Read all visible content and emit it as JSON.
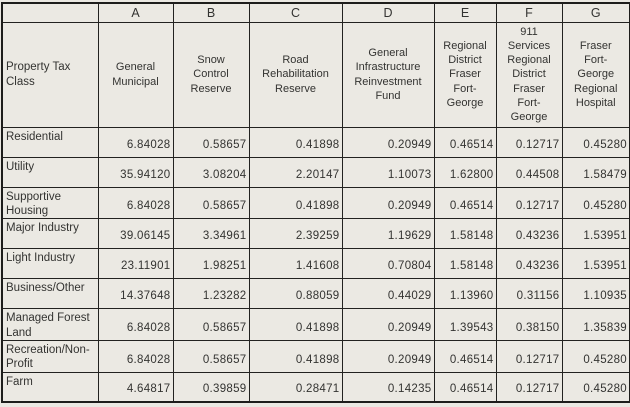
{
  "table": {
    "corner_label": "Property Tax Class",
    "column_letters": [
      "A",
      "B",
      "C",
      "D",
      "E",
      "F",
      "G"
    ],
    "columns": [
      "General Municipal",
      "Snow Control Reserve",
      "Road Rehabilitation Reserve",
      "General Infrastructure Reinvestment Fund",
      "Regional District Fraser Fort-George",
      "911 Services Regional District Fraser Fort-George",
      "Fraser Fort-George Regional Hospital"
    ],
    "rows": [
      {
        "label": "Residential",
        "values": [
          "6.84028",
          "0.58657",
          "0.41898",
          "0.20949",
          "0.46514",
          "0.12717",
          "0.45280"
        ]
      },
      {
        "label": "Utility",
        "values": [
          "35.94120",
          "3.08204",
          "2.20147",
          "1.10073",
          "1.62800",
          "0.44508",
          "1.58479"
        ]
      },
      {
        "label": "Supportive Housing",
        "values": [
          "6.84028",
          "0.58657",
          "0.41898",
          "0.20949",
          "0.46514",
          "0.12717",
          "0.45280"
        ]
      },
      {
        "label": "Major Industry",
        "values": [
          "39.06145",
          "3.34961",
          "2.39259",
          "1.19629",
          "1.58148",
          "0.43236",
          "1.53951"
        ]
      },
      {
        "label": "Light Industry",
        "values": [
          "23.11901",
          "1.98251",
          "1.41608",
          "0.70804",
          "1.58148",
          "0.43236",
          "1.53951"
        ]
      },
      {
        "label": "Business/Other",
        "values": [
          "14.37648",
          "1.23282",
          "0.88059",
          "0.44029",
          "1.13960",
          "0.31156",
          "1.10935"
        ]
      },
      {
        "label": "Managed Forest Land",
        "values": [
          "6.84028",
          "0.58657",
          "0.41898",
          "0.20949",
          "1.39543",
          "0.38150",
          "1.35839"
        ]
      },
      {
        "label": "Recreation/Non-Profit",
        "values": [
          "6.84028",
          "0.58657",
          "0.41898",
          "0.20949",
          "0.46514",
          "0.12717",
          "0.45280"
        ]
      },
      {
        "label": "Farm",
        "values": [
          "4.64817",
          "0.39859",
          "0.28471",
          "0.14235",
          "0.46514",
          "0.12717",
          "0.45280"
        ]
      }
    ]
  },
  "colors": {
    "paper_background": "#eae8e2",
    "border": "#222220",
    "text": "#333331"
  }
}
